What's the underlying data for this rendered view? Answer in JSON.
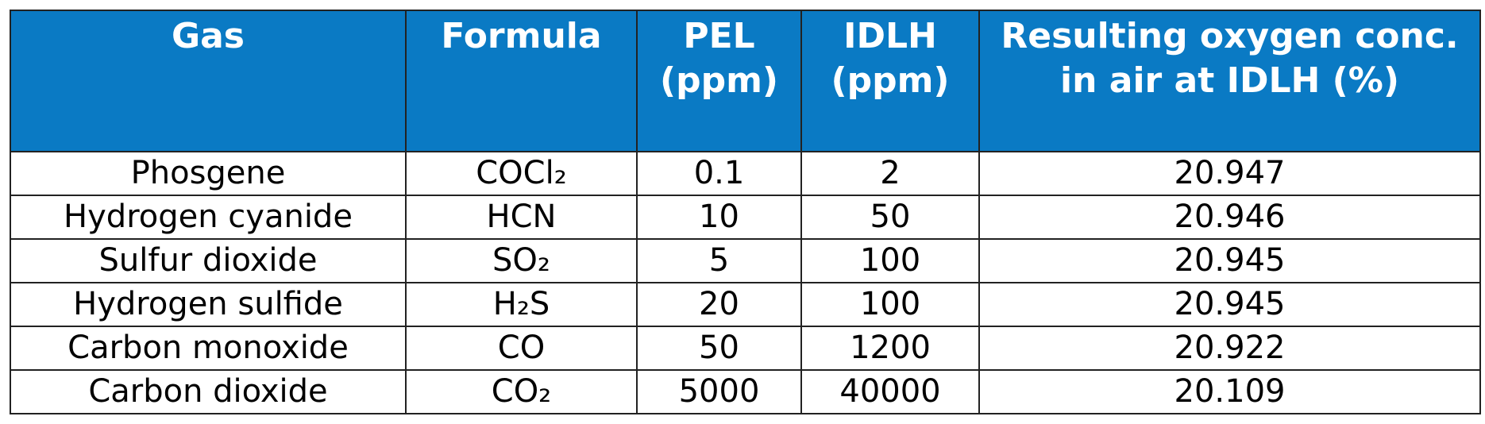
{
  "table": {
    "header": [
      "Gas",
      "Formula",
      "PEL (ppm)",
      "IDLH (ppm)",
      "Resulting oxygen conc. in air at IDLH (%)"
    ],
    "rows": [
      [
        "Phosgene",
        "COCl₂",
        0.1,
        2,
        20.947
      ],
      [
        "Hydrogen cyanide",
        "HCN",
        10,
        50,
        20.946
      ],
      [
        "Sulfur dioxide",
        "SO₂",
        5,
        100,
        20.945
      ],
      [
        "Hydrogen sulfide",
        "H₂S",
        20,
        100,
        20.945
      ],
      [
        "Carbon monoxide",
        "CO",
        50,
        1200,
        20.922
      ],
      [
        "Carbon dioxide",
        "CO₂",
        5000,
        40000,
        20.109
      ]
    ]
  }
}
